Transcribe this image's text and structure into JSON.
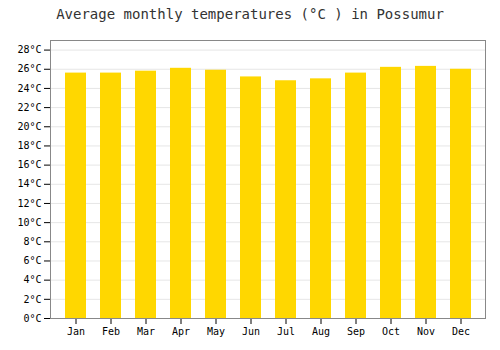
{
  "chart_data": {
    "type": "bar",
    "title": "Average monthly temperatures (°C ) in Possumur",
    "categories": [
      "Jan",
      "Feb",
      "Mar",
      "Apr",
      "May",
      "Jun",
      "Jul",
      "Aug",
      "Sep",
      "Oct",
      "Nov",
      "Dec"
    ],
    "values": [
      25.6,
      25.6,
      25.8,
      26.1,
      25.9,
      25.2,
      24.8,
      25.0,
      25.6,
      26.2,
      26.3,
      26.0
    ],
    "color": "#FFD700",
    "ylim": [
      0,
      29
    ],
    "yticks": [
      {
        "value": 0,
        "label": "0°C"
      },
      {
        "value": 2,
        "label": "2°C"
      },
      {
        "value": 4,
        "label": "4°C"
      },
      {
        "value": 6,
        "label": "6°C"
      },
      {
        "value": 8,
        "label": "8°C"
      },
      {
        "value": 10,
        "label": "10°C"
      },
      {
        "value": 12,
        "label": "12°C"
      },
      {
        "value": 14,
        "label": "14°C"
      },
      {
        "value": 16,
        "label": "16°C"
      },
      {
        "value": 18,
        "label": "18°C"
      },
      {
        "value": 20,
        "label": "20°C"
      },
      {
        "value": 22,
        "label": "22°C"
      },
      {
        "value": 24,
        "label": "24°C"
      },
      {
        "value": 26,
        "label": "26°C"
      },
      {
        "value": 28,
        "label": "28°C"
      }
    ],
    "grid": true
  }
}
